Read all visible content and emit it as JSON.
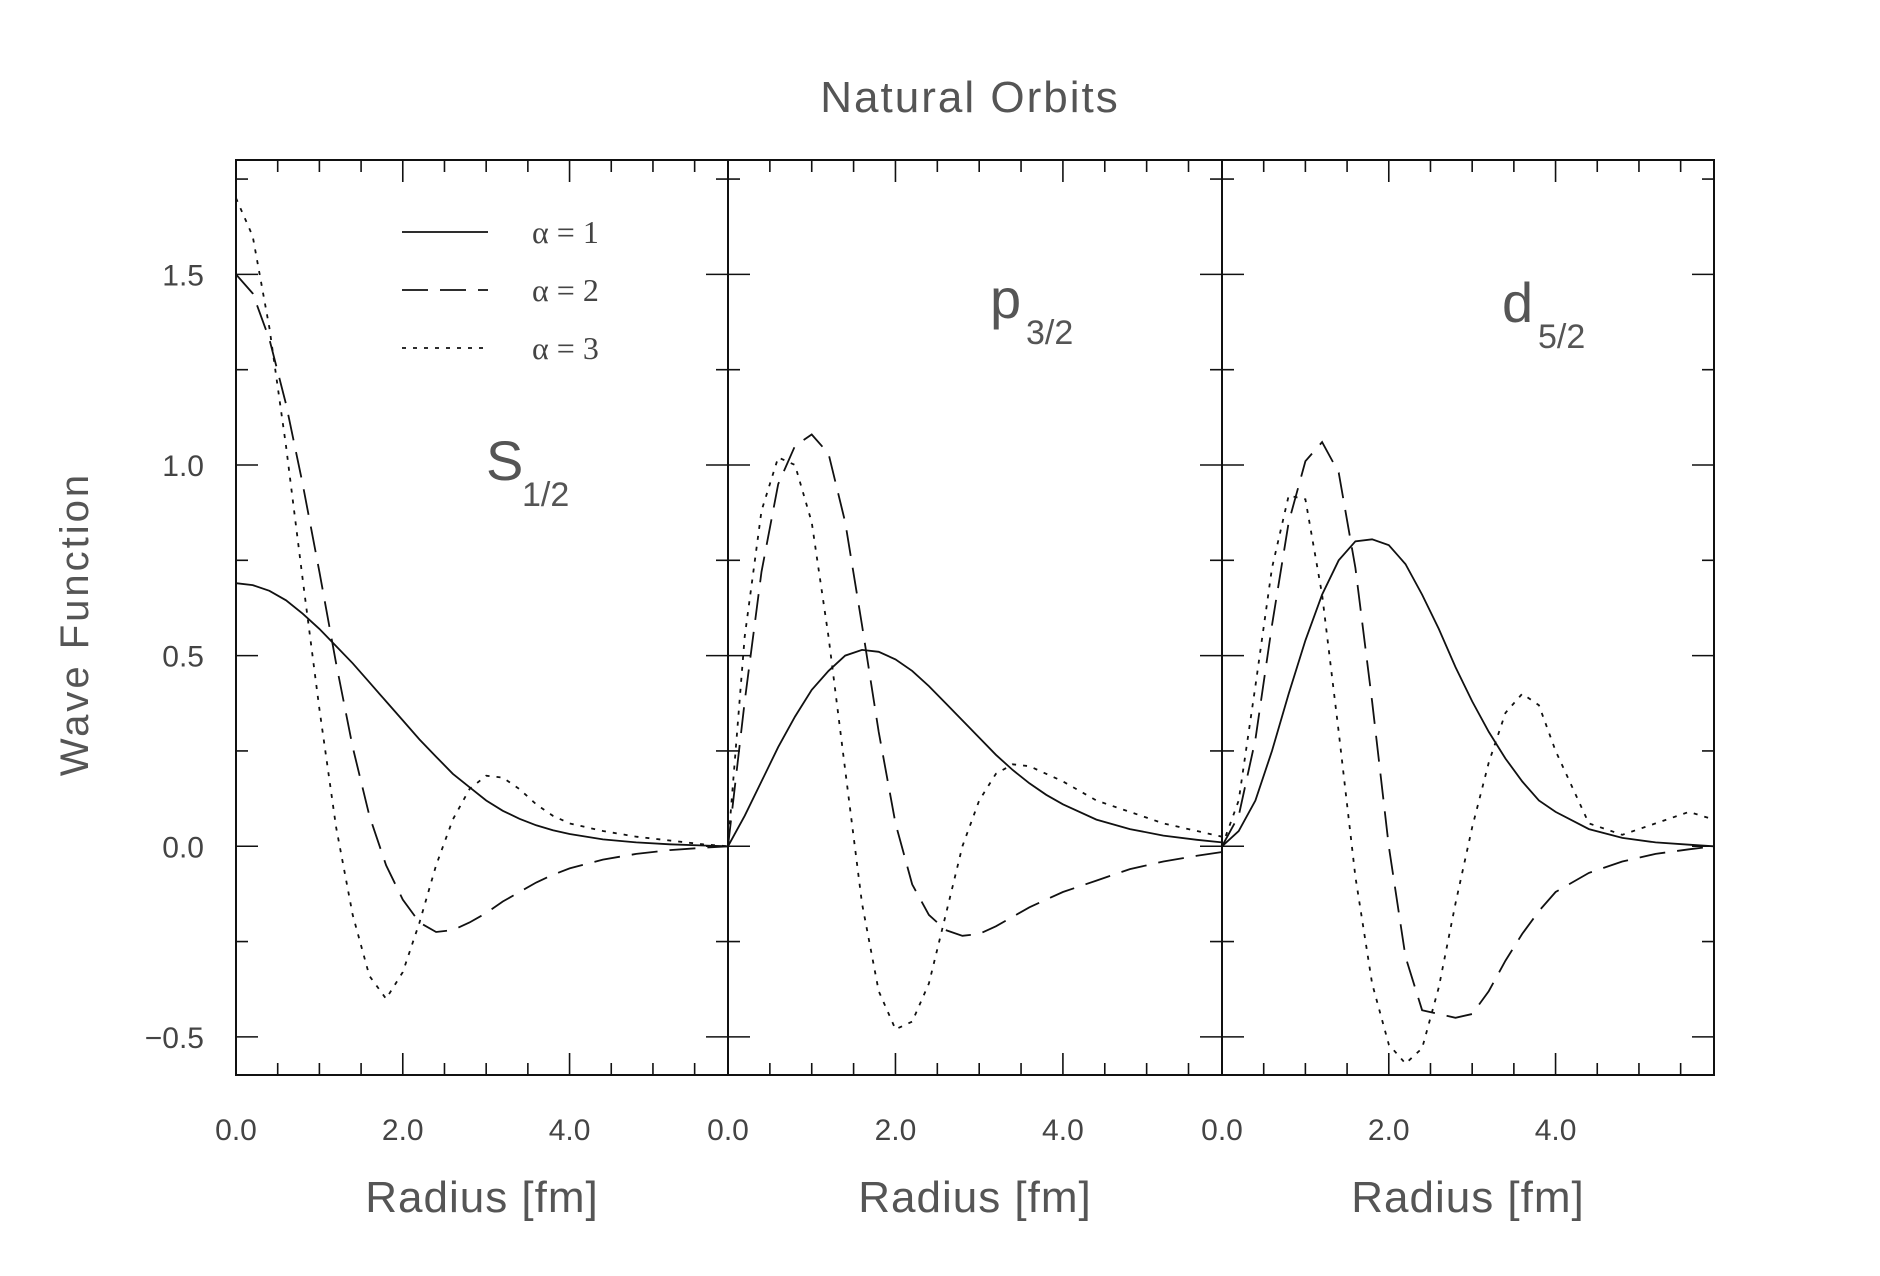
{
  "chart_data": {
    "type": "line",
    "title": "Natural Orbits",
    "ylabel": "Wave Function",
    "ylim": [
      -0.6,
      1.8
    ],
    "yticks": [
      -0.5,
      0.0,
      0.5,
      1.0,
      1.5
    ],
    "ytick_labels": [
      "−0.5",
      "0.0",
      "0.5",
      "1.0",
      "1.5"
    ],
    "grid": false,
    "legend_position": "top-left",
    "legend": [
      {
        "label": "α = 1",
        "style": "solid"
      },
      {
        "label": "α = 2",
        "style": "dashed"
      },
      {
        "label": "α = 3",
        "style": "dotted"
      }
    ],
    "panels": [
      {
        "label_main": "S",
        "label_sub": "1/2",
        "xlabel": "Radius [fm]",
        "xlim": [
          0,
          5.9
        ],
        "xticks": [
          0,
          2,
          4
        ],
        "xtick_labels": [
          "0.0",
          "2.0",
          "4.0"
        ],
        "series": [
          {
            "style": "solid",
            "x": [
              0,
              0.2,
              0.4,
              0.6,
              0.8,
              1.0,
              1.2,
              1.4,
              1.6,
              1.8,
              2.0,
              2.2,
              2.4,
              2.6,
              2.8,
              3.0,
              3.2,
              3.4,
              3.6,
              3.8,
              4.0,
              4.4,
              4.8,
              5.2,
              5.6,
              5.9
            ],
            "y": [
              0.69,
              0.685,
              0.67,
              0.645,
              0.61,
              0.57,
              0.525,
              0.48,
              0.43,
              0.38,
              0.33,
              0.28,
              0.235,
              0.19,
              0.155,
              0.12,
              0.093,
              0.072,
              0.055,
              0.042,
              0.032,
              0.018,
              0.01,
              0.005,
              0.002,
              0.0
            ]
          },
          {
            "style": "dashed",
            "x": [
              0,
              0.2,
              0.4,
              0.6,
              0.8,
              1.0,
              1.2,
              1.4,
              1.6,
              1.8,
              2.0,
              2.2,
              2.4,
              2.6,
              2.8,
              3.0,
              3.2,
              3.4,
              3.6,
              3.8,
              4.0,
              4.4,
              4.8,
              5.2,
              5.6,
              5.9
            ],
            "y": [
              1.5,
              1.45,
              1.33,
              1.16,
              0.95,
              0.72,
              0.48,
              0.26,
              0.08,
              -0.05,
              -0.14,
              -0.2,
              -0.225,
              -0.22,
              -0.2,
              -0.175,
              -0.145,
              -0.12,
              -0.095,
              -0.075,
              -0.058,
              -0.035,
              -0.02,
              -0.01,
              -0.004,
              0.0
            ]
          },
          {
            "style": "dotted",
            "x": [
              0,
              0.2,
              0.4,
              0.6,
              0.8,
              1.0,
              1.2,
              1.4,
              1.6,
              1.8,
              2.0,
              2.2,
              2.4,
              2.6,
              2.8,
              3.0,
              3.2,
              3.4,
              3.6,
              3.8,
              4.0,
              4.4,
              4.8,
              5.2,
              5.6,
              5.9
            ],
            "y": [
              1.7,
              1.6,
              1.36,
              1.05,
              0.7,
              0.36,
              0.05,
              -0.18,
              -0.34,
              -0.4,
              -0.33,
              -0.2,
              -0.05,
              0.07,
              0.15,
              0.185,
              0.18,
              0.15,
              0.11,
              0.08,
              0.06,
              0.04,
              0.025,
              0.015,
              0.005,
              0.0
            ]
          }
        ]
      },
      {
        "label_main": "p",
        "label_sub": "3/2",
        "xlabel": "Radius [fm]",
        "xlim": [
          0,
          5.9
        ],
        "xticks": [
          0,
          2,
          4
        ],
        "xtick_labels": [
          "0.0",
          "2.0",
          "4.0"
        ],
        "series": [
          {
            "style": "solid",
            "x": [
              0,
              0.2,
              0.4,
              0.6,
              0.8,
              1.0,
              1.2,
              1.4,
              1.6,
              1.8,
              2.0,
              2.2,
              2.4,
              2.6,
              2.8,
              3.0,
              3.2,
              3.4,
              3.6,
              3.8,
              4.0,
              4.4,
              4.8,
              5.2,
              5.6,
              5.9
            ],
            "y": [
              0.0,
              0.08,
              0.17,
              0.26,
              0.34,
              0.41,
              0.46,
              0.5,
              0.515,
              0.51,
              0.49,
              0.46,
              0.42,
              0.375,
              0.33,
              0.285,
              0.24,
              0.2,
              0.165,
              0.135,
              0.11,
              0.07,
              0.045,
              0.028,
              0.017,
              0.01
            ]
          },
          {
            "style": "dashed",
            "x": [
              0,
              0.2,
              0.4,
              0.6,
              0.8,
              1.0,
              1.2,
              1.4,
              1.6,
              1.8,
              2.0,
              2.2,
              2.4,
              2.6,
              2.8,
              3.0,
              3.2,
              3.4,
              3.6,
              3.8,
              4.0,
              4.4,
              4.8,
              5.2,
              5.6,
              5.9
            ],
            "y": [
              0.0,
              0.38,
              0.72,
              0.95,
              1.05,
              1.08,
              1.03,
              0.85,
              0.58,
              0.3,
              0.06,
              -0.1,
              -0.18,
              -0.22,
              -0.235,
              -0.23,
              -0.21,
              -0.185,
              -0.16,
              -0.14,
              -0.12,
              -0.09,
              -0.06,
              -0.04,
              -0.025,
              -0.015
            ]
          },
          {
            "style": "dotted",
            "x": [
              0,
              0.2,
              0.4,
              0.6,
              0.8,
              1.0,
              1.2,
              1.4,
              1.6,
              1.8,
              2.0,
              2.2,
              2.4,
              2.6,
              2.8,
              3.0,
              3.2,
              3.4,
              3.6,
              3.8,
              4.0,
              4.4,
              4.8,
              5.2,
              5.6,
              5.9
            ],
            "y": [
              0.0,
              0.55,
              0.88,
              1.02,
              1.0,
              0.85,
              0.55,
              0.2,
              -0.15,
              -0.38,
              -0.48,
              -0.46,
              -0.36,
              -0.18,
              0.0,
              0.12,
              0.19,
              0.215,
              0.21,
              0.19,
              0.17,
              0.12,
              0.09,
              0.06,
              0.04,
              0.025
            ]
          }
        ]
      },
      {
        "label_main": "d",
        "label_sub": "5/2",
        "xlabel": "Radius [fm]",
        "xlim": [
          0,
          5.9
        ],
        "xticks": [
          0,
          2,
          4
        ],
        "xtick_labels": [
          "0.0",
          "2.0",
          "4.0"
        ],
        "series": [
          {
            "style": "solid",
            "x": [
              0,
              0.2,
              0.4,
              0.6,
              0.8,
              1.0,
              1.2,
              1.4,
              1.6,
              1.8,
              2.0,
              2.2,
              2.4,
              2.6,
              2.8,
              3.0,
              3.2,
              3.4,
              3.6,
              3.8,
              4.0,
              4.4,
              4.8,
              5.2,
              5.6,
              5.9
            ],
            "y": [
              0.0,
              0.04,
              0.12,
              0.25,
              0.4,
              0.54,
              0.66,
              0.75,
              0.8,
              0.805,
              0.79,
              0.74,
              0.66,
              0.57,
              0.47,
              0.38,
              0.3,
              0.23,
              0.17,
              0.12,
              0.09,
              0.045,
              0.022,
              0.01,
              0.004,
              0.0
            ]
          },
          {
            "style": "dashed",
            "x": [
              0,
              0.2,
              0.4,
              0.6,
              0.8,
              1.0,
              1.2,
              1.4,
              1.6,
              1.8,
              2.0,
              2.2,
              2.4,
              2.6,
              2.8,
              3.0,
              3.2,
              3.4,
              3.6,
              3.8,
              4.0,
              4.4,
              4.8,
              5.2,
              5.6,
              5.9
            ],
            "y": [
              0.0,
              0.08,
              0.28,
              0.58,
              0.85,
              1.01,
              1.06,
              0.98,
              0.73,
              0.38,
              0.0,
              -0.29,
              -0.43,
              -0.44,
              -0.45,
              -0.44,
              -0.38,
              -0.3,
              -0.23,
              -0.17,
              -0.12,
              -0.07,
              -0.04,
              -0.02,
              -0.008,
              0.0
            ]
          },
          {
            "style": "dotted",
            "x": [
              0,
              0.2,
              0.4,
              0.6,
              0.8,
              1.0,
              1.2,
              1.4,
              1.6,
              1.8,
              2.0,
              2.2,
              2.4,
              2.6,
              2.8,
              3.0,
              3.2,
              3.4,
              3.6,
              3.8,
              4.0,
              4.4,
              4.8,
              5.2,
              5.6,
              5.9
            ],
            "y": [
              0.0,
              0.12,
              0.42,
              0.73,
              0.92,
              0.91,
              0.66,
              0.3,
              -0.08,
              -0.36,
              -0.52,
              -0.57,
              -0.53,
              -0.37,
              -0.15,
              0.05,
              0.22,
              0.35,
              0.4,
              0.37,
              0.25,
              0.06,
              0.03,
              0.06,
              0.09,
              0.07
            ]
          }
        ]
      }
    ]
  }
}
